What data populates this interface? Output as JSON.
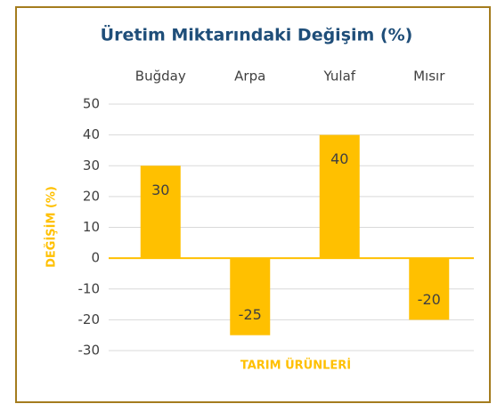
{
  "chart_data": {
    "type": "bar",
    "title": "Üretim Miktarındaki Değişim (%)",
    "categories": [
      "Buğday",
      "Arpa",
      "Yulaf",
      "Mısır"
    ],
    "values": [
      30,
      -25,
      40,
      -20
    ],
    "color": "#ffc000",
    "xlabel": "TARIM ÜRÜNLERİ",
    "ylabel": "DEĞİŞİM (%)",
    "ylim": [
      -30,
      50
    ],
    "yticks": [
      -30,
      -20,
      -10,
      0,
      10,
      20,
      30,
      40,
      50
    ],
    "grid": true
  }
}
